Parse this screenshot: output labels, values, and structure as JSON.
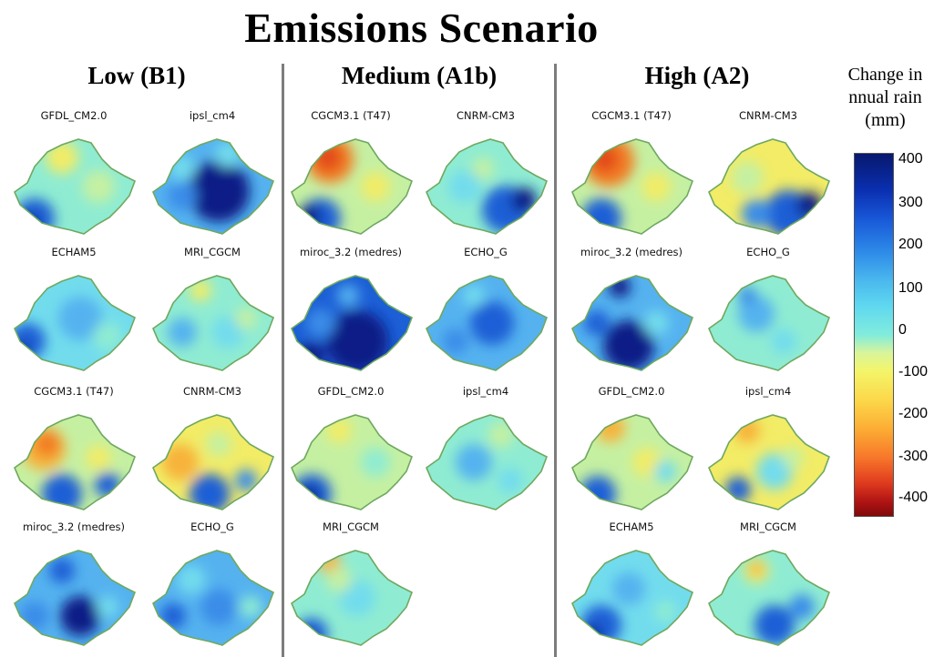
{
  "title": "Emissions Scenario",
  "scenarios": [
    {
      "heading": "Low (B1)",
      "models": [
        "GFDL_CM2.0",
        "ipsl_cm4",
        "ECHAM5",
        "MRI_CGCM",
        "CGCM3.1 (T47)",
        "CNRM-CM3",
        "miroc_3.2 (medres)",
        "ECHO_G"
      ]
    },
    {
      "heading": "Medium (A1b)",
      "models": [
        "CGCM3.1 (T47)",
        "CNRM-CM3",
        "miroc_3.2 (medres)",
        "ECHO_G",
        "GFDL_CM2.0",
        "ipsl_cm4",
        "MRI_CGCM"
      ]
    },
    {
      "heading": "High (A2)",
      "models": [
        "CGCM3.1 (T47)",
        "CNRM-CM3",
        "miroc_3.2 (medres)",
        "ECHO_G",
        "GFDL_CM2.0",
        "ipsl_cm4",
        "ECHAM5",
        "MRI_CGCM"
      ]
    }
  ],
  "legend": {
    "title": "Change in nnual rain (mm)",
    "ticks": [
      "400",
      "300",
      "200",
      "100",
      "0",
      "-100",
      "-200",
      "-300",
      "-400"
    ]
  },
  "colors": {
    "outline": "#6fa860",
    "divider": "#7d7d7d",
    "extreme_wet": "#08186e",
    "extreme_dry": "#800a0a"
  }
}
